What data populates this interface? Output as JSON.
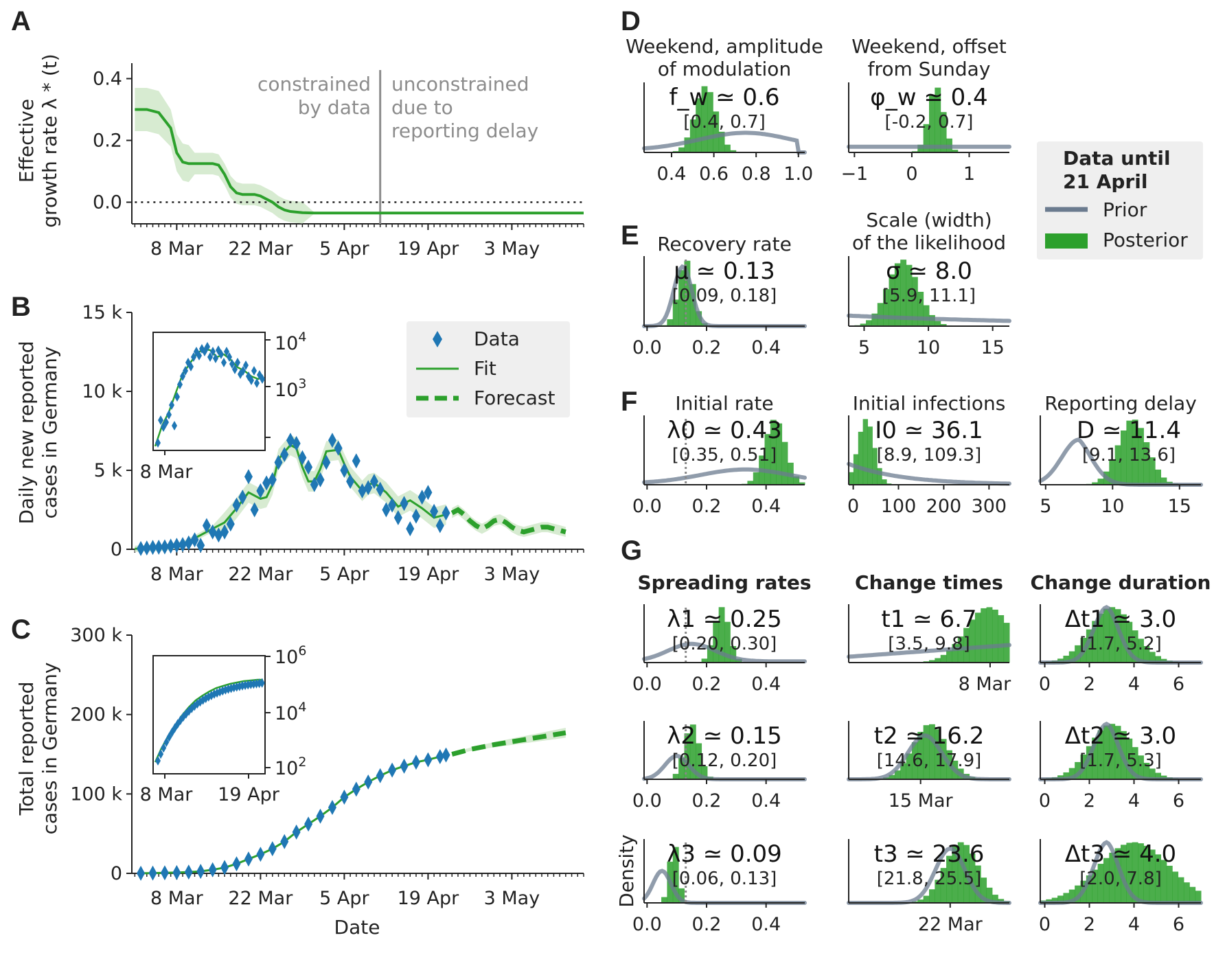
{
  "colors": {
    "green": "#2ca02c",
    "green_light": "#9fd59a",
    "green_band": "#d7ebd1",
    "blue": "#1f77b4",
    "prior": "#6b7b8f",
    "gray_line": "#8c8c8c",
    "legend_bg": "#efefef"
  },
  "panel_letters": [
    "A",
    "B",
    "C",
    "D",
    "E",
    "F",
    "G"
  ],
  "panel_a": {
    "ylabel_line1": "Effective",
    "ylabel_line2": "growth rate λ * (t)",
    "note_left_1": "constrained",
    "note_left_2": "by data",
    "note_right_1": "unconstrained",
    "note_right_2": "due to",
    "note_right_3": "reporting delay"
  },
  "panel_b": {
    "ylabel_line1": "Daily new reported",
    "ylabel_line2": "cases in Germany",
    "legend": [
      "Data",
      "Fit",
      "Forecast"
    ],
    "inset_ticks": [
      "10",
      "10"
    ],
    "inset_exps": [
      "4",
      "3"
    ],
    "inset_xtick": "8 Mar"
  },
  "panel_c": {
    "ylabel_line1": "Total reported",
    "ylabel_line2": "cases in Germany",
    "xlabel": "Date",
    "inset_ticks": [
      "10",
      "10",
      "10"
    ],
    "inset_exps": [
      "6",
      "4",
      "2"
    ],
    "inset_xticks": [
      "8 Mar",
      "19 Apr"
    ]
  },
  "legend_right": {
    "title_line1": "Data until",
    "title_line2": "21 April",
    "prior": "Prior",
    "posterior": "Posterior"
  },
  "small_panels": {
    "D1": {
      "title1": "Weekend, amplitude",
      "title2": "of modulation",
      "main": "f_w ≃ 0.6",
      "ci": "[0.4, 0.7]",
      "ticks": [
        "0.4",
        "0.6",
        "0.8",
        "1.0"
      ]
    },
    "D2": {
      "title1": "Weekend, offset",
      "title2": "from Sunday",
      "main": "φ_w ≃ 0.4",
      "ci": "[-0.2, 0.7]",
      "ticks": [
        "−1",
        "0",
        "1"
      ]
    },
    "E1": {
      "title1": "Recovery rate",
      "main": "μ ≃ 0.13",
      "ci": "[0.09, 0.18]",
      "ticks": [
        "0.0",
        "0.2",
        "0.4"
      ]
    },
    "E2": {
      "title1": "Scale (width)",
      "title2": "of the likelihood",
      "main": "σ ≃ 8.0",
      "ci": "[5.9, 11.1]",
      "ticks": [
        "5",
        "10",
        "15"
      ]
    },
    "F1": {
      "title1": "Initial rate",
      "main": "λ0 ≃ 0.43",
      "ci": "[0.35, 0.51]",
      "ticks": [
        "0.0",
        "0.2",
        "0.4"
      ]
    },
    "F2": {
      "title1": "Initial infections",
      "main": "I0 ≃ 36.1",
      "ci": "[8.9, 109.3]",
      "ticks": [
        "0",
        "100",
        "200",
        "300"
      ]
    },
    "F3": {
      "title1": "Reporting delay",
      "main": "D ≃ 11.4",
      "ci": "[9.1, 13.6]",
      "ticks": [
        "5",
        "10",
        "15"
      ]
    },
    "G11": {
      "title1": "Spreading rates",
      "main": "λ1 ≃ 0.25",
      "ci": "[0.20, 0.30]",
      "ticks": [
        "0.0",
        "0.2",
        "0.4"
      ]
    },
    "G12": {
      "title1": "Change times",
      "main": "t1 ≃ 6.7",
      "ci": "[3.5, 9.8]",
      "ticks": [
        "8 Mar"
      ]
    },
    "G13": {
      "title1": "Change duration",
      "main": "Δt1 ≃ 3.0",
      "ci": "[1.7, 5.2]",
      "ticks": [
        "0",
        "2",
        "4",
        "6"
      ]
    },
    "G21": {
      "main": "λ2 ≃ 0.15",
      "ci": "[0.12, 0.20]",
      "ticks": [
        "0.0",
        "0.2",
        "0.4"
      ]
    },
    "G22": {
      "main": "t2 ≃ 16.2",
      "ci": "[14.6, 17.9]",
      "ticks": [
        "15 Mar"
      ]
    },
    "G23": {
      "main": "Δt2 ≃ 3.0",
      "ci": "[1.7, 5.3]",
      "ticks": [
        "0",
        "2",
        "4",
        "6"
      ]
    },
    "G31": {
      "main": "λ3 ≃ 0.09",
      "ci": "[0.06, 0.13]",
      "ticks": [
        "0.0",
        "0.2",
        "0.4"
      ],
      "ylabel": "Density"
    },
    "G32": {
      "main": "t3 ≃ 23.6",
      "ci": "[21.8, 25.5]",
      "ticks": [
        "22 Mar"
      ]
    },
    "G33": {
      "main": "Δt3 ≃ 4.0",
      "ci": "[2.0, 7.8]",
      "ticks": [
        "0",
        "2",
        "4",
        "6"
      ]
    }
  },
  "chart_data": [
    {
      "id": "A",
      "type": "line",
      "ylim": [
        -0.07,
        0.45
      ],
      "yticks": [
        "0.4",
        "0.2",
        "0.0"
      ],
      "ytick_values": [
        0.4,
        0.2,
        0.0
      ],
      "xlim_day": [
        0,
        75
      ],
      "xtick_labels": [
        "8 Mar",
        "22 Mar",
        "5 Apr",
        "19 Apr",
        "3 May"
      ],
      "xtick_day": [
        7,
        21,
        35,
        49,
        63
      ],
      "separator_day": 41,
      "series": [
        {
          "name": "",
          "x_day": [
            0,
            2,
            4,
            6,
            7,
            8,
            9,
            10,
            11,
            12,
            13,
            14,
            15,
            16,
            17,
            18,
            19,
            20,
            21,
            22,
            23,
            24,
            25,
            26,
            27,
            28,
            30,
            32,
            35,
            41,
            50,
            60,
            75
          ],
          "values": [
            0.3,
            0.3,
            0.29,
            0.24,
            0.16,
            0.13,
            0.125,
            0.125,
            0.125,
            0.125,
            0.125,
            0.12,
            0.09,
            0.05,
            0.03,
            0.025,
            0.025,
            0.025,
            0.02,
            0.01,
            0.0,
            -0.015,
            -0.025,
            -0.03,
            -0.032,
            -0.034,
            -0.035,
            -0.035,
            -0.035,
            -0.035,
            -0.035,
            -0.035,
            -0.035
          ]
        }
      ]
    },
    {
      "id": "B",
      "type": "scatter",
      "ylim": [
        0,
        15000
      ],
      "yticks": [
        "15 k",
        "10 k",
        "5 k",
        "0"
      ],
      "ytick_values": [
        15000,
        10000,
        5000,
        0
      ],
      "xtick_labels": [
        "8 Mar",
        "22 Mar",
        "5 Apr",
        "19 Apr",
        "3 May"
      ],
      "xtick_day": [
        7,
        21,
        35,
        49,
        63
      ],
      "series": [
        {
          "name": "Data",
          "x_day": [
            1,
            2,
            3,
            4,
            5,
            6,
            7,
            8,
            9,
            10,
            11,
            12,
            13,
            14,
            15,
            16,
            17,
            18,
            19,
            20,
            21,
            22,
            23,
            24,
            25,
            26,
            27,
            28,
            29,
            30,
            31,
            32,
            33,
            34,
            35,
            36,
            37,
            38,
            39,
            40,
            41,
            42,
            43,
            44,
            45,
            46,
            47,
            48,
            49,
            50,
            51,
            52
          ],
          "values": [
            50,
            80,
            120,
            130,
            150,
            200,
            250,
            300,
            400,
            600,
            250,
            1500,
            1100,
            900,
            1100,
            1600,
            2800,
            3300,
            4600,
            2500,
            3700,
            4200,
            4400,
            5500,
            6000,
            6900,
            6700,
            5800,
            5200,
            4100,
            4400,
            5500,
            6900,
            6400,
            5000,
            4300,
            5600,
            3700,
            3900,
            4300,
            3800,
            2500,
            2800,
            2000,
            2900,
            1300,
            2100,
            3300,
            3600,
            2400,
            1500,
            2300
          ]
        },
        {
          "name": "Fit",
          "x_day": [
            0,
            5,
            8,
            11,
            13,
            15,
            17,
            19,
            21,
            22,
            23,
            24,
            26,
            27,
            28,
            29,
            30,
            31,
            32,
            34,
            35,
            36,
            38,
            39,
            40,
            42,
            44,
            46,
            48,
            50,
            52
          ],
          "values": [
            30,
            100,
            300,
            900,
            1300,
            1700,
            2600,
            3600,
            3200,
            3300,
            4100,
            5700,
            6600,
            6400,
            5200,
            4300,
            4300,
            5100,
            6200,
            6300,
            5400,
            4600,
            3700,
            4100,
            4200,
            3600,
            2700,
            3100,
            2600,
            2000,
            2200
          ]
        },
        {
          "name": "Forecast",
          "x_day": [
            53,
            54,
            55,
            56,
            57,
            58,
            59,
            60,
            61,
            62,
            63,
            64,
            65,
            66,
            67,
            68,
            69,
            70,
            71,
            72
          ],
          "values": [
            2300,
            2500,
            2200,
            1800,
            1500,
            1300,
            1500,
            1800,
            1900,
            1700,
            1400,
            1200,
            1100,
            1200,
            1300,
            1400,
            1400,
            1300,
            1200,
            1100
          ]
        }
      ]
    },
    {
      "id": "C",
      "type": "scatter",
      "ylim": [
        0,
        300000
      ],
      "yticks": [
        "300 k",
        "200 k",
        "100 k",
        "0"
      ],
      "ytick_values": [
        300000,
        200000,
        100000,
        0
      ],
      "xlabel": "Date",
      "xtick_labels": [
        "8 Mar",
        "22 Mar",
        "5 Apr",
        "19 Apr",
        "3 May"
      ],
      "xtick_day": [
        7,
        21,
        35,
        49,
        63
      ],
      "series": [
        {
          "name": "Data",
          "x_day": [
            1,
            3,
            5,
            7,
            9,
            11,
            13,
            15,
            17,
            19,
            21,
            23,
            25,
            27,
            29,
            31,
            33,
            35,
            37,
            39,
            41,
            43,
            45,
            47,
            49,
            51,
            52
          ],
          "values": [
            100,
            300,
            700,
            1000,
            1600,
            2500,
            4500,
            7300,
            12000,
            18000,
            24000,
            31000,
            40000,
            52000,
            62000,
            72000,
            83000,
            96000,
            106000,
            115000,
            123000,
            130000,
            135000,
            140000,
            143000,
            147000,
            149000
          ]
        },
        {
          "name": "Forecast",
          "x_day": [
            53,
            56,
            60,
            64,
            68,
            72
          ],
          "values": [
            150000,
            156000,
            162000,
            167000,
            172000,
            177000
          ]
        }
      ]
    }
  ]
}
